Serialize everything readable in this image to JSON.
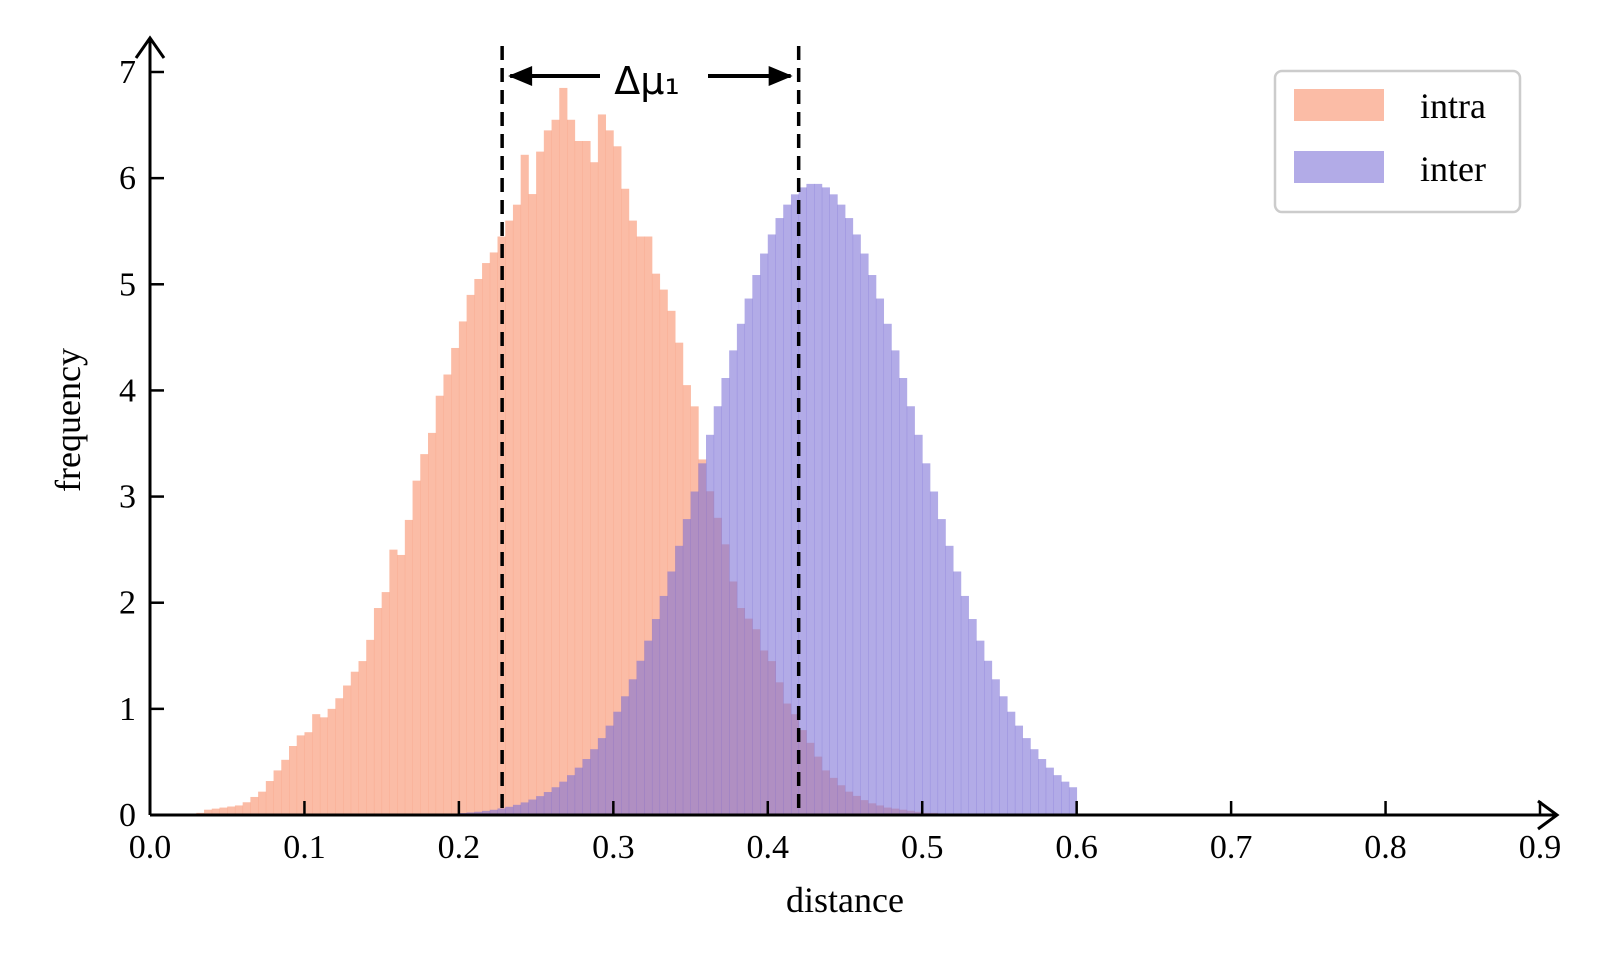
{
  "chart_data": {
    "type": "bar",
    "title": "",
    "xlabel": "distance",
    "ylabel": "frequency",
    "xlim": [
      0.0,
      0.9
    ],
    "ylim": [
      0,
      7
    ],
    "xticks": [
      "0.0",
      "0.1",
      "0.2",
      "0.3",
      "0.4",
      "0.5",
      "0.6",
      "0.7",
      "0.8",
      "0.9"
    ],
    "yticks": [
      "0",
      "1",
      "2",
      "3",
      "4",
      "5",
      "6",
      "7"
    ],
    "grid": false,
    "legend_position": "top-right",
    "bin_width": 0.005,
    "series": [
      {
        "name": "intra",
        "color": "#fa9f80",
        "opacity": 0.7,
        "bin_start": 0.03,
        "values": [
          0.02,
          0.05,
          0.06,
          0.07,
          0.08,
          0.09,
          0.12,
          0.17,
          0.22,
          0.32,
          0.42,
          0.52,
          0.65,
          0.75,
          0.78,
          0.95,
          0.92,
          1.0,
          1.1,
          1.22,
          1.35,
          1.45,
          1.65,
          1.95,
          2.1,
          2.5,
          2.45,
          2.78,
          3.15,
          3.4,
          3.6,
          3.95,
          4.15,
          4.4,
          4.65,
          4.9,
          5.05,
          5.2,
          5.3,
          5.45,
          5.6,
          5.75,
          6.22,
          5.85,
          6.25,
          6.45,
          6.55,
          6.85,
          6.55,
          6.35,
          6.35,
          6.15,
          6.6,
          6.45,
          6.3,
          5.9,
          5.6,
          5.45,
          5.45,
          5.1,
          4.95,
          4.75,
          4.45,
          4.05,
          3.85,
          3.35,
          3.05,
          2.8,
          2.55,
          2.2,
          1.95,
          1.85,
          1.75,
          1.55,
          1.45,
          1.25,
          1.05,
          0.95,
          0.8,
          0.68,
          0.55,
          0.42,
          0.35,
          0.28,
          0.22,
          0.18,
          0.14,
          0.11,
          0.09,
          0.07,
          0.06,
          0.05,
          0.04,
          0.03,
          0.02,
          0.02,
          0.01,
          0.01,
          0.01
        ]
      },
      {
        "name": "inter",
        "color": "#7b6fd6",
        "opacity": 0.58,
        "mean": 0.43,
        "sd": 0.067,
        "peak": 5.95,
        "x_range": [
          0.2,
          0.6
        ]
      }
    ],
    "annotations": {
      "vlines": [
        0.228,
        0.42
      ],
      "delta_label": "Δμ₁"
    }
  }
}
